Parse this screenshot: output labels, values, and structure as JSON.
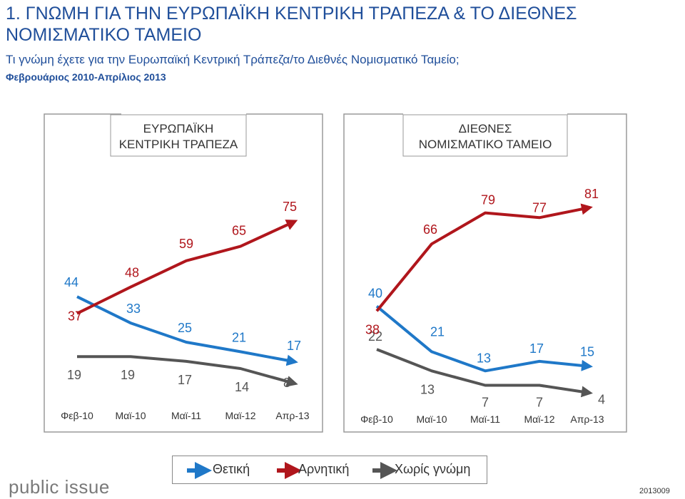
{
  "header": {
    "title": "1. ΓΝΩΜΗ ΓΙΑ ΤΗΝ ΕΥΡΩΠΑΪΚΗ ΚΕΝΤΡΙΚΗ ΤΡΑΠΕΖΑ & ΤΟ ΔΙΕΘΝΕΣ ΝΟΜΙΣΜΑΤΙΚΟ ΤΑΜΕΙΟ",
    "subtitle": "Τι γνώμη έχετε για την Ευρωπαϊκή Κεντρική Τράπεζα/το Διεθνές Νομισματικό Ταμείο;",
    "period": "Φεβρουάριος 2010-Απρίλιος 2013"
  },
  "colors": {
    "positive": "#1f78c8",
    "negative": "#b0161c",
    "no_opinion": "#555555"
  },
  "legend": {
    "positive": "Θετική",
    "negative": "Αρνητική",
    "no_opinion": "Χωρίς γνώμη"
  },
  "footer": {
    "logo": "public issue",
    "code": "2013009"
  },
  "chart_data": [
    {
      "type": "line",
      "title": "ΕΥΡΩΠΑΪΚΗ ΚΕΝΤΡΙΚΗ ΤΡΑΠΕΖΑ",
      "categories": [
        "Φεβ-10",
        "Μαϊ-10",
        "Μαϊ-11",
        "Μαϊ-12",
        "Απρ-13"
      ],
      "series": [
        {
          "name": "Θετική",
          "key": "positive",
          "values": [
            44,
            33,
            25,
            21,
            17
          ]
        },
        {
          "name": "Αρνητική",
          "key": "negative",
          "values": [
            37,
            48,
            59,
            65,
            75
          ]
        },
        {
          "name": "Χωρίς γνώμη",
          "key": "no_opinion",
          "values": [
            19,
            19,
            17,
            14,
            8
          ]
        }
      ]
    },
    {
      "type": "line",
      "title": "ΔΙΕΘΝΕΣ ΝΟΜΙΣΜΑΤΙΚΟ ΤΑΜΕΙΟ",
      "categories": [
        "Φεβ-10",
        "Μαϊ-10",
        "Μαϊ-11",
        "Μαϊ-12",
        "Απρ-13"
      ],
      "series": [
        {
          "name": "Θετική",
          "key": "positive",
          "values": [
            40,
            21,
            13,
            17,
            15
          ]
        },
        {
          "name": "Αρνητική",
          "key": "negative",
          "values": [
            38,
            66,
            79,
            77,
            81
          ]
        },
        {
          "name": "Χωρίς γνώμη",
          "key": "no_opinion",
          "values": [
            22,
            13,
            7,
            7,
            4
          ]
        }
      ]
    }
  ]
}
